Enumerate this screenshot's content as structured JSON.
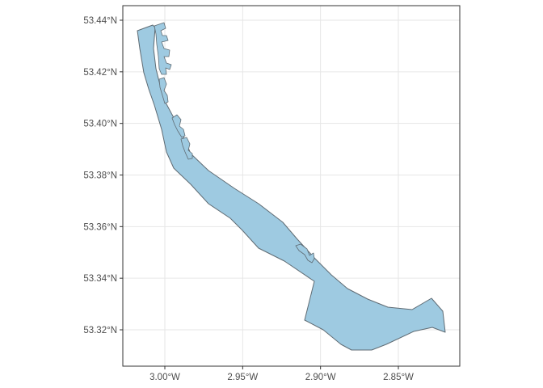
{
  "map": {
    "type": "estuary-outline",
    "water_color": "#9ecae1",
    "coast_color": "#5f6b73",
    "grid": true,
    "x_ticks": [
      {
        "value": -3.0,
        "label": "3.00°W"
      },
      {
        "value": -2.95,
        "label": "2.95°W"
      },
      {
        "value": -2.9,
        "label": "2.90°W"
      },
      {
        "value": -2.85,
        "label": "2.85°W"
      }
    ],
    "y_ticks": [
      {
        "value": 53.32,
        "label": "53.32°N"
      },
      {
        "value": 53.34,
        "label": "53.34°N"
      },
      {
        "value": 53.36,
        "label": "53.36°N"
      },
      {
        "value": 53.38,
        "label": "53.38°N"
      },
      {
        "value": 53.4,
        "label": "53.40°N"
      },
      {
        "value": 53.42,
        "label": "53.42°N"
      },
      {
        "value": 53.44,
        "label": "53.44°N"
      }
    ]
  }
}
